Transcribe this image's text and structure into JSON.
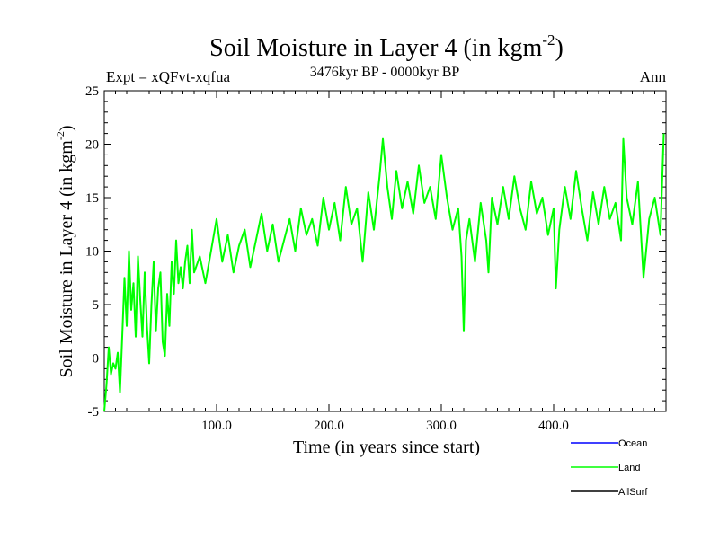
{
  "chart_data": {
    "type": "line",
    "title": "Soil Moisture in Layer 4 (in kgm",
    "title_sup": "-2",
    "title_close": ")",
    "subtitle": "3476kyr BP - 0000kyr BP",
    "expt_label": "Expt = xQFvt-xqfua",
    "season_label": "Ann",
    "xlabel": "Time (in years since start)",
    "ylabel": "Soil Moisture in Layer 4 (in kgm",
    "ylabel_sup": "-2",
    "ylabel_close": ")",
    "xlim": [
      0,
      500
    ],
    "ylim": [
      -5,
      25
    ],
    "x_ticks": [
      100,
      200,
      300,
      400
    ],
    "x_tick_labels": [
      "100.0",
      "200.0",
      "300.0",
      "400.0"
    ],
    "y_ticks": [
      -5,
      0,
      5,
      10,
      15,
      20,
      25
    ],
    "y_tick_labels": [
      "-5",
      "0",
      "5",
      "10",
      "15",
      "20",
      "25"
    ],
    "zero_line": 0,
    "legend": [
      {
        "name": "Ocean",
        "color": "#0000ff"
      },
      {
        "name": "Land",
        "color": "#00ff00"
      },
      {
        "name": "AllSurf",
        "color": "#000000"
      }
    ],
    "series": [
      {
        "name": "Land",
        "color": "#00ff00",
        "x": [
          0,
          2,
          4,
          6,
          8,
          10,
          12,
          14,
          16,
          18,
          20,
          22,
          24,
          26,
          28,
          30,
          32,
          34,
          36,
          38,
          40,
          42,
          44,
          46,
          48,
          50,
          52,
          54,
          56,
          58,
          60,
          62,
          64,
          66,
          68,
          70,
          72,
          74,
          76,
          78,
          80,
          85,
          90,
          95,
          100,
          105,
          110,
          115,
          120,
          125,
          130,
          135,
          140,
          145,
          150,
          155,
          160,
          165,
          170,
          175,
          180,
          185,
          190,
          195,
          200,
          205,
          210,
          215,
          220,
          225,
          230,
          235,
          240,
          245,
          248,
          252,
          256,
          260,
          265,
          270,
          275,
          280,
          285,
          290,
          295,
          300,
          305,
          310,
          315,
          318,
          320,
          322,
          325,
          330,
          335,
          340,
          342,
          345,
          350,
          355,
          360,
          365,
          370,
          375,
          380,
          385,
          390,
          395,
          400,
          402,
          405,
          410,
          415,
          420,
          425,
          430,
          435,
          440,
          445,
          450,
          455,
          460,
          462,
          465,
          470,
          475,
          480,
          485,
          490,
          495,
          498
        ],
        "values": [
          -5.0,
          -2.5,
          1.0,
          -1.5,
          -0.5,
          -1.0,
          0.5,
          -3.2,
          2.0,
          7.5,
          3.0,
          10.0,
          4.5,
          7.0,
          2.0,
          9.5,
          5.5,
          2.0,
          8.0,
          3.0,
          -0.5,
          5.0,
          9.0,
          2.5,
          6.5,
          8.0,
          1.5,
          0.2,
          6.0,
          3.0,
          9.0,
          6.0,
          11.0,
          7.0,
          8.5,
          6.5,
          9.0,
          10.5,
          7.0,
          12.0,
          8.0,
          9.5,
          7.0,
          10.0,
          13.0,
          9.0,
          11.5,
          8.0,
          10.5,
          12.0,
          8.5,
          11.0,
          13.5,
          10.0,
          12.5,
          9.0,
          11.0,
          13.0,
          10.0,
          14.0,
          11.5,
          13.0,
          10.5,
          15.0,
          12.0,
          14.5,
          11.0,
          16.0,
          12.5,
          14.0,
          9.0,
          15.5,
          12.0,
          17.0,
          20.5,
          16.0,
          13.0,
          17.5,
          14.0,
          16.5,
          13.5,
          18.0,
          14.5,
          16.0,
          13.0,
          19.0,
          15.0,
          12.0,
          14.0,
          9.5,
          2.5,
          11.0,
          13.0,
          9.0,
          14.5,
          11.0,
          8.0,
          15.0,
          12.5,
          16.0,
          13.0,
          17.0,
          14.0,
          12.0,
          16.5,
          13.5,
          15.0,
          11.5,
          14.0,
          6.5,
          12.0,
          16.0,
          13.0,
          17.5,
          14.0,
          11.0,
          15.5,
          12.5,
          16.0,
          13.0,
          14.5,
          11.0,
          20.5,
          15.0,
          12.5,
          16.5,
          7.5,
          13.0,
          15.0,
          11.5,
          21.0
        ]
      }
    ]
  }
}
